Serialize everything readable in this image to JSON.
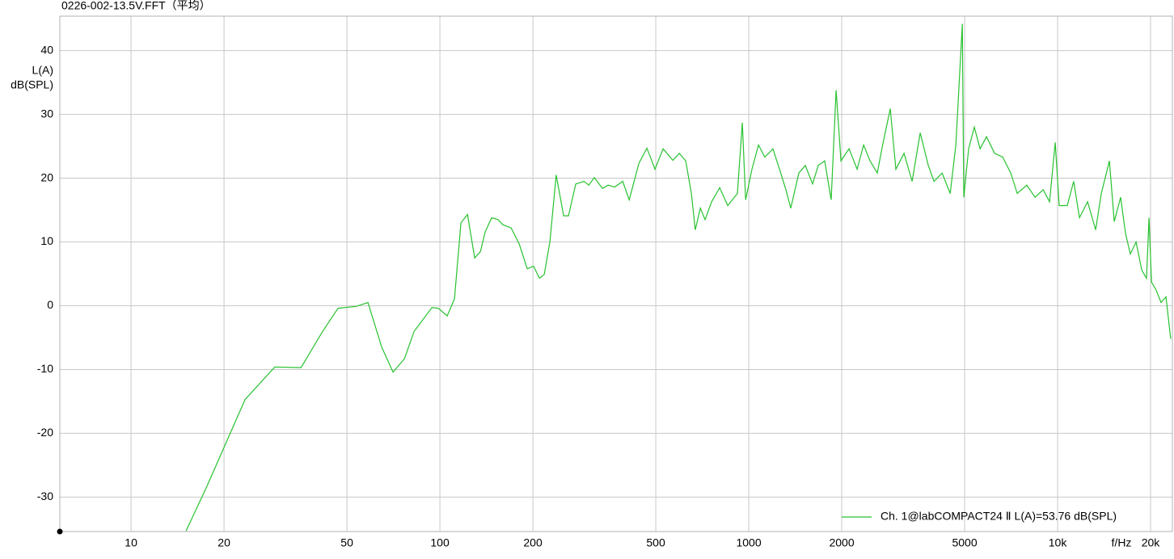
{
  "chart_data": {
    "type": "line",
    "title": "0226-002-13.5V.FFT（平均）",
    "x_label": "f/Hz",
    "y_label": [
      "L(A)",
      "dB(SPL)"
    ],
    "xscale": "log",
    "grid": true,
    "legend": "lower right",
    "xlim": [
      5.88,
      23530
    ],
    "ylim": [
      -35.4,
      45.4
    ],
    "xticks": [
      10,
      20,
      50,
      100,
      200,
      500,
      1000,
      2000,
      5000,
      {
        "value": 10000,
        "label": "10k"
      },
      {
        "value": 20000,
        "label": "20k"
      }
    ],
    "yticks": [
      -30,
      -20,
      -10,
      0,
      10,
      20,
      30,
      40
    ],
    "x": [
      15.07,
      17.5,
      23.4,
      29.2,
      35.5,
      41.5,
      46.8,
      53.5,
      58.5,
      64.8,
      70.5,
      76.8,
      82.5,
      94.2,
      98.8,
      105.6,
      111.5,
      117,
      122.8,
      129.6,
      135.3,
      140.2,
      147.2,
      154.3,
      159.9,
      170,
      180.6,
      191.8,
      201,
      210,
      217.7,
      227,
      238,
      251.5,
      260.8,
      275.3,
      292.6,
      303.5,
      316,
      336,
      350.6,
      367.6,
      390.8,
      410,
      440.6,
      468,
      497,
      528,
      568,
      596,
      625,
      652,
      671,
      697,
      722,
      758,
      805,
      855,
      919,
      953,
      977,
      1024,
      1075,
      1127,
      1198,
      1265,
      1319,
      1368,
      1453,
      1524,
      1609,
      1679,
      1762,
      1849,
      1918,
      1988,
      2112,
      2243,
      2354,
      2470,
      2606,
      2720,
      2873,
      2995,
      3183,
      3381,
      3591,
      3814,
      3980,
      4227,
      4490,
      4683,
      4914,
      4969,
      5152,
      5374,
      5610,
      5884,
      6250,
      6639,
      7053,
      7400,
      7950,
      8450,
      8980,
      9420,
      9823,
      10120,
      10750,
      11270,
      11770,
      12500,
      13280,
      13850,
      14710,
      15250,
      16000,
      16600,
      17200,
      17950,
      18720,
      19400,
      19770,
      20140,
      20870,
      21630,
      22440,
      23240
    ],
    "series": [
      {
        "name": "Ch. 1@labCOMPACT24 Ⅱ L(A)=53.76 dB(SPL)",
        "color": "#27c22f",
        "values": [
          -35.3,
          -28.6,
          -14.7,
          -9.6,
          -9.7,
          -4.2,
          -0.4,
          -0.1,
          0.5,
          -6.5,
          -10.4,
          -8.3,
          -4.0,
          -0.3,
          -0.4,
          -1.6,
          1.1,
          13.0,
          14.3,
          7.5,
          8.5,
          11.6,
          13.8,
          13.5,
          12.7,
          12.2,
          9.7,
          5.8,
          6.2,
          4.3,
          4.9,
          10.0,
          20.5,
          14.1,
          14.1,
          19.1,
          19.5,
          18.9,
          20.1,
          18.4,
          18.9,
          18.6,
          19.5,
          16.6,
          22.3,
          24.7,
          21.4,
          24.6,
          22.8,
          23.9,
          22.7,
          17.6,
          11.9,
          15.3,
          13.5,
          16.3,
          18.5,
          15.7,
          17.6,
          28.7,
          16.6,
          21.4,
          25.2,
          23.3,
          24.6,
          21.0,
          18.2,
          15.3,
          20.8,
          22.0,
          19.1,
          22.0,
          22.7,
          16.6,
          33.8,
          22.7,
          24.6,
          21.4,
          25.2,
          22.7,
          20.8,
          25.5,
          30.9,
          21.4,
          23.9,
          19.5,
          27.1,
          22.0,
          19.5,
          20.8,
          17.6,
          25.2,
          44.2,
          17.0,
          24.6,
          28.0,
          24.6,
          26.5,
          23.9,
          23.3,
          20.8,
          17.6,
          18.9,
          17.0,
          18.2,
          16.3,
          25.6,
          15.7,
          15.7,
          19.5,
          13.8,
          16.3,
          11.9,
          17.6,
          22.7,
          13.2,
          17.0,
          11.3,
          8.1,
          10.0,
          5.6,
          4.3,
          13.8,
          3.7,
          2.4,
          0.5,
          1.4,
          -5.2
        ]
      }
    ]
  }
}
